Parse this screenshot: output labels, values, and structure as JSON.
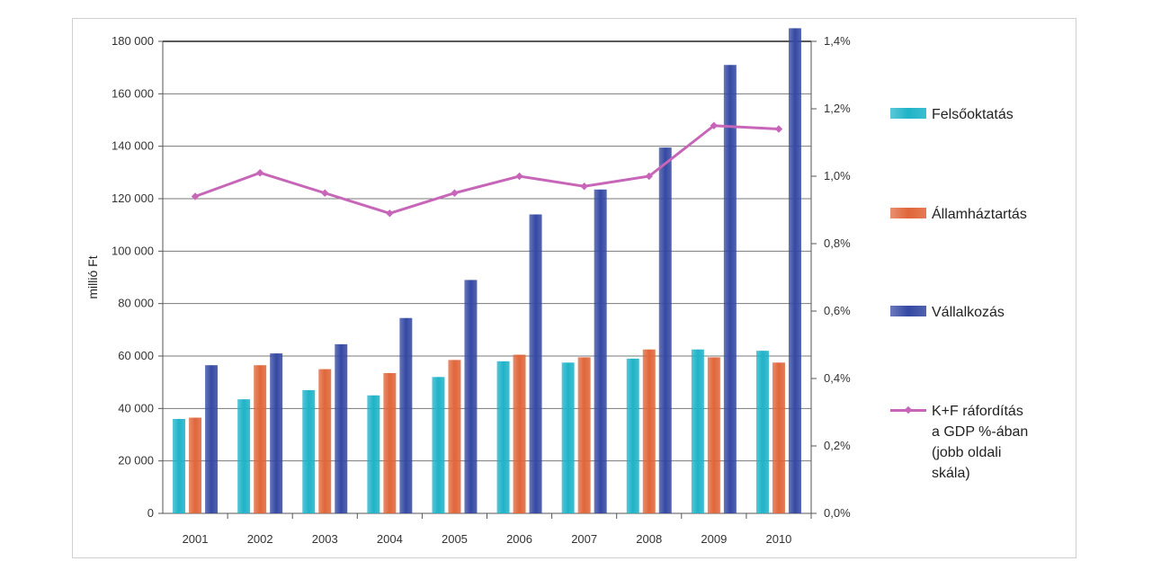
{
  "chart_data": {
    "type": "bar",
    "categories": [
      "2001",
      "2002",
      "2003",
      "2004",
      "2005",
      "2006",
      "2007",
      "2008",
      "2009",
      "2010"
    ],
    "ylabel": "millió Ft",
    "ylim": [
      0,
      180000
    ],
    "y_ticks": [
      "0",
      "20 000",
      "40 000",
      "60 000",
      "80 000",
      "100 000",
      "120 000",
      "140 000",
      "160 000",
      "180 000"
    ],
    "y2lim": [
      0,
      1.4
    ],
    "y2_ticks": [
      "0,0%",
      "0,2%",
      "0,4%",
      "0,6%",
      "0,8%",
      "1,0%",
      "1,2%",
      "1,4%"
    ],
    "grid": true,
    "legend_position": "right",
    "series": [
      {
        "name": "Felsőoktatás",
        "kind": "bar",
        "color": "#1fb3c8",
        "values": [
          36000,
          43500,
          47000,
          45000,
          52000,
          58000,
          57500,
          59000,
          62500,
          62000
        ]
      },
      {
        "name": "Államháztartás",
        "kind": "bar",
        "color": "#e0663a",
        "values": [
          36500,
          56500,
          55000,
          53500,
          58500,
          60500,
          59500,
          62500,
          59500,
          57500
        ]
      },
      {
        "name": "Vállalkozás",
        "kind": "bar",
        "color": "#3549a3",
        "values": [
          56500,
          61000,
          64500,
          74500,
          89000,
          114000,
          123500,
          139500,
          171000,
          185000
        ]
      },
      {
        "name": "K+F ráfordítás\na GDP %-ában\n(jobb oldali\nskála)",
        "kind": "line",
        "axis": "right",
        "color": "#c766b8",
        "values": [
          0.94,
          1.01,
          0.95,
          0.89,
          0.95,
          1.0,
          0.97,
          1.0,
          1.15,
          1.14
        ]
      }
    ]
  }
}
